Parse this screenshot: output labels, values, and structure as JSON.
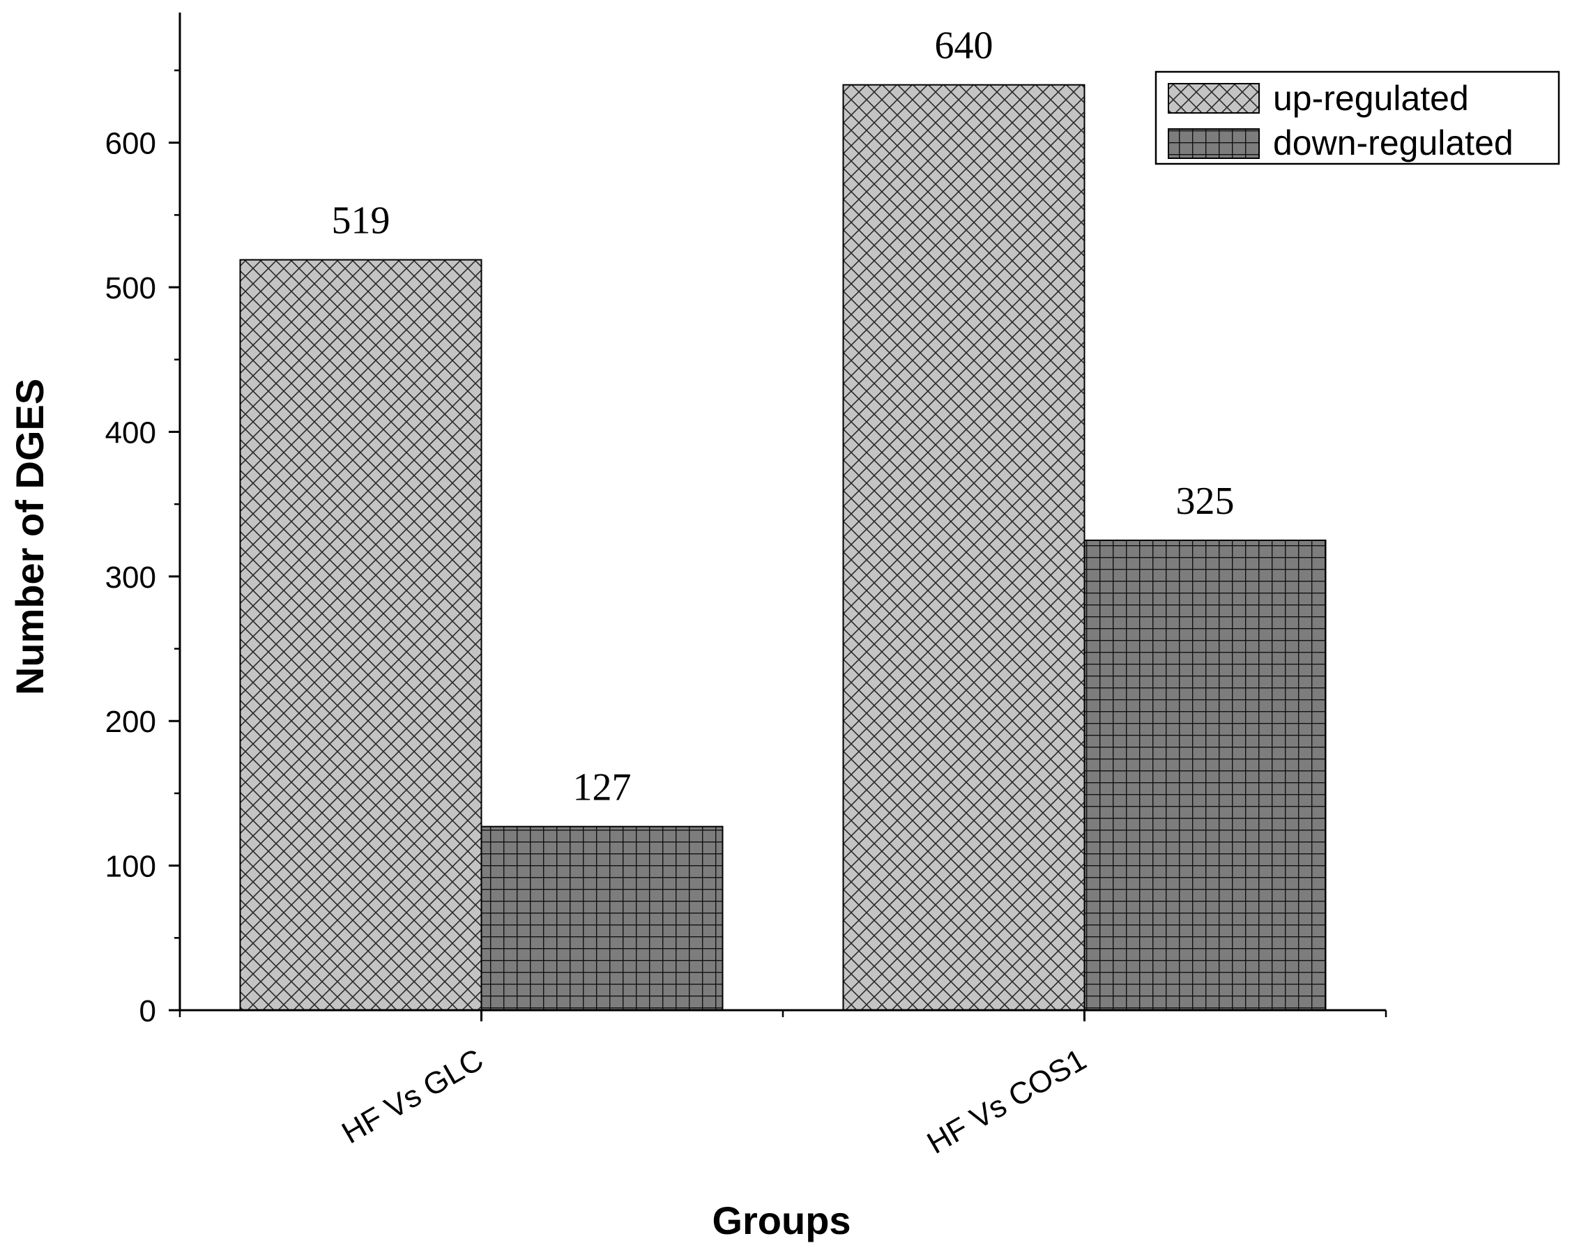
{
  "chart_data": {
    "type": "bar",
    "title": "",
    "xlabel": "Groups",
    "ylabel": "Number of DGES",
    "categories": [
      "HF Vs GLC",
      "HF Vs COS1"
    ],
    "series": [
      {
        "name": "up-regulated",
        "values": [
          519,
          640
        ],
        "value_labels": [
          "519",
          "640"
        ],
        "color": "#c4c4c4",
        "pattern": "crosshatch"
      },
      {
        "name": "down-regulated",
        "values": [
          127,
          325
        ],
        "value_labels": [
          "127",
          "325"
        ],
        "color": "#7d7d7d",
        "pattern": "grid"
      }
    ],
    "ylim": [
      0,
      690
    ],
    "yticks": [
      0,
      100,
      200,
      300,
      400,
      500,
      600
    ],
    "ytick_labels": [
      "0",
      "100",
      "200",
      "300",
      "400",
      "500",
      "600"
    ],
    "grid": false,
    "legend_position": "top-right"
  }
}
